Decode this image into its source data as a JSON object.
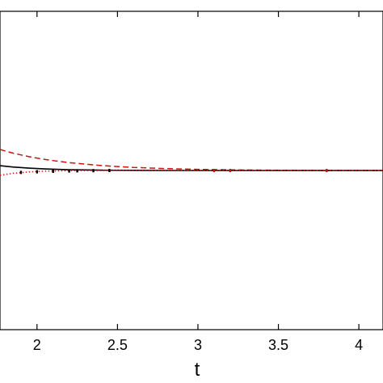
{
  "chart_data": {
    "type": "line",
    "title": "",
    "xlabel": "t",
    "ylabel": "",
    "xlim": [
      1.77,
      4.15
    ],
    "ylim": [
      -1.0,
      1.0
    ],
    "grid": false,
    "legend": "none",
    "x_ticks": [
      {
        "value": 2,
        "label": "2"
      },
      {
        "value": 2.5,
        "label": "2.5"
      },
      {
        "value": 3,
        "label": "3"
      },
      {
        "value": 3.5,
        "label": "3.5"
      },
      {
        "value": 4,
        "label": "4"
      }
    ],
    "series": [
      {
        "color": "#cc1111",
        "dash": "dashed",
        "x": [
          1.77,
          1.85,
          1.95,
          2.05,
          2.2,
          2.4,
          2.6,
          2.8,
          3.0,
          3.2,
          3.4,
          3.6,
          3.8,
          4.0,
          4.15
        ],
        "y": [
          0.132,
          0.109,
          0.087,
          0.069,
          0.049,
          0.031,
          0.019,
          0.012,
          0.007,
          0.004,
          0.002,
          0.001,
          0.0,
          0.0,
          0.0
        ]
      },
      {
        "color": "#000000",
        "dash": "solid",
        "x": [
          1.77,
          1.85,
          1.95,
          2.05,
          2.2,
          2.4,
          2.6,
          2.8,
          3.0,
          3.2,
          3.5,
          4.15
        ],
        "y": [
          0.03,
          0.022,
          0.015,
          0.01,
          0.005,
          0.002,
          0.001,
          0.0,
          0.0,
          0.0,
          0.0,
          0.0
        ]
      },
      {
        "color": "#cc1111",
        "dash": "dotted",
        "x": [
          1.77,
          1.85,
          1.95,
          2.05,
          2.2,
          2.4,
          2.6,
          2.8,
          3.0,
          3.2,
          3.5,
          4.15
        ],
        "y": [
          -0.03,
          -0.018,
          -0.009,
          -0.004,
          -0.001,
          0.0,
          0.0,
          0.0,
          0.0,
          0.0,
          0.0,
          0.0
        ]
      },
      {
        "color": "#000000",
        "dash": "markers",
        "x": [
          1.9,
          2.0,
          2.1,
          2.2,
          2.25,
          2.35,
          2.45
        ],
        "y": [
          -0.012,
          -0.008,
          -0.005,
          -0.003,
          -0.002,
          -0.001,
          0.0
        ]
      },
      {
        "color": "#cc1111",
        "dash": "markers",
        "x": [
          3.1,
          3.2,
          3.8
        ],
        "y": [
          0.0,
          0.0,
          0.0
        ]
      }
    ]
  }
}
